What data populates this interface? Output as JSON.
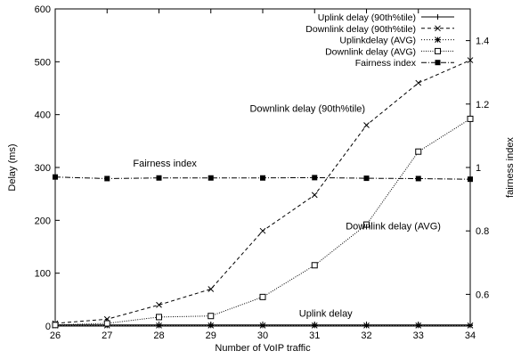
{
  "chart_data": {
    "type": "line",
    "xlabel": "Number of VoIP traffic",
    "ylabel": "Delay (ms)",
    "y2label": "fairness index",
    "x": [
      26,
      27,
      28,
      29,
      30,
      31,
      32,
      33,
      34
    ],
    "xlim": [
      26,
      34
    ],
    "ylim": [
      0,
      600
    ],
    "y2lim": [
      0.5,
      1.5
    ],
    "xticks": [
      26,
      27,
      28,
      29,
      30,
      31,
      32,
      33,
      34
    ],
    "yticks": [
      0,
      100,
      200,
      300,
      400,
      500,
      600
    ],
    "y2ticks": [
      0.6,
      0.8,
      1,
      1.2,
      1.4
    ],
    "grid": false,
    "legend_position": "top-right",
    "series": [
      {
        "name": "Uplink delay (90th%tile)",
        "axis": "left",
        "marker": "plus",
        "dash": "solid",
        "values": [
          2,
          2,
          2,
          2,
          2,
          2,
          2,
          2,
          2
        ]
      },
      {
        "name": "Downlink delay (90th%tile)",
        "axis": "left",
        "marker": "x",
        "dash": "dashed",
        "values": [
          5,
          13,
          40,
          70,
          180,
          248,
          380,
          460,
          503
        ]
      },
      {
        "name": "Uplinkdelay (AVG)",
        "axis": "left",
        "marker": "star",
        "dash": "dotted-fine",
        "values": [
          1,
          1,
          1,
          1,
          1,
          1,
          1,
          1,
          1
        ]
      },
      {
        "name": "Downlink delay (AVG)",
        "axis": "left",
        "marker": "open-square",
        "dash": "dotted",
        "values": [
          2,
          5,
          17,
          19,
          55,
          115,
          192,
          330,
          392
        ]
      },
      {
        "name": "Fairness index",
        "axis": "right",
        "marker": "filled-square",
        "dash": "dash-dot",
        "values": [
          0.97,
          0.965,
          0.967,
          0.967,
          0.967,
          0.968,
          0.966,
          0.965,
          0.963
        ]
      }
    ],
    "annotations": [
      {
        "text": "Downlink delay (90th%tile)",
        "x": 29.75,
        "y": 405
      },
      {
        "text": "Fairness index",
        "x": 27.5,
        "y": 302
      },
      {
        "text": "Downlink delay (AVG)",
        "x": 31.6,
        "y": 183
      },
      {
        "text": "Uplink delay",
        "x": 30.7,
        "y": 18
      }
    ]
  }
}
